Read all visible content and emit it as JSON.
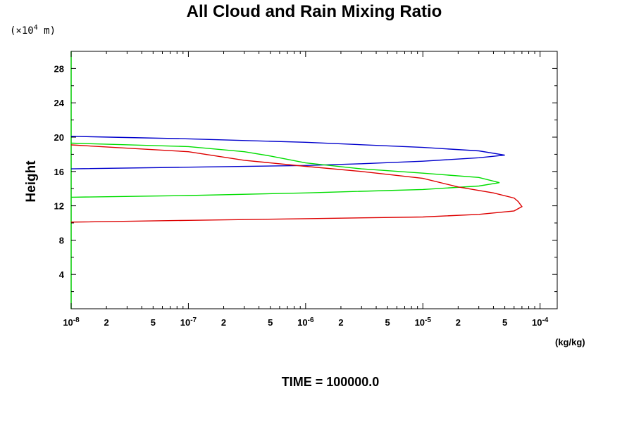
{
  "chart_data": {
    "type": "line",
    "title": "All Cloud and Rain Mixing Ratio",
    "ylabel": "Height",
    "y_unit": "(×10",
    "y_unit_exp": "4",
    "y_unit_tail": " m)",
    "xlabel_unit": "(kg/kg)",
    "x_scale": "log",
    "xlim": [
      1e-08,
      0.00014
    ],
    "ylim": [
      0,
      30
    ],
    "y_ticks": [
      "4",
      "8",
      "12",
      "16",
      "20",
      "24",
      "28"
    ],
    "x_decade_labels": [
      {
        "base": "10",
        "exp": "-8"
      },
      {
        "base": "10",
        "exp": "-7"
      },
      {
        "base": "10",
        "exp": "-6"
      },
      {
        "base": "10",
        "exp": "-5"
      },
      {
        "base": "10",
        "exp": "-4"
      }
    ],
    "x_minor_label_2": "2",
    "x_minor_label_5": "5",
    "grid": false,
    "series": [
      {
        "color": "#0000cc",
        "points": [
          [
            1e-08,
            20.1
          ],
          [
            1e-07,
            19.8
          ],
          [
            1e-06,
            19.4
          ],
          [
            1e-05,
            18.8
          ],
          [
            3e-05,
            18.4
          ],
          [
            5e-05,
            17.9
          ],
          [
            3e-05,
            17.6
          ],
          [
            1e-05,
            17.2
          ],
          [
            3e-06,
            16.9
          ],
          [
            1e-06,
            16.7
          ],
          [
            1e-07,
            16.5
          ],
          [
            1e-08,
            16.3
          ]
        ]
      },
      {
        "color": "#00dd00",
        "points": [
          [
            1e-08,
            19.3
          ],
          [
            1e-07,
            18.9
          ],
          [
            3e-07,
            18.3
          ],
          [
            5e-07,
            17.8
          ],
          [
            1e-06,
            17.0
          ],
          [
            3e-06,
            16.3
          ],
          [
            1e-05,
            15.8
          ],
          [
            3e-05,
            15.3
          ],
          [
            4.5e-05,
            14.7
          ],
          [
            3e-05,
            14.3
          ],
          [
            1e-05,
            13.9
          ],
          [
            1e-06,
            13.5
          ],
          [
            1e-07,
            13.2
          ],
          [
            1e-08,
            13.0
          ]
        ]
      },
      {
        "color": "#dd0000",
        "points": [
          [
            1e-08,
            19.1
          ],
          [
            1e-07,
            18.3
          ],
          [
            3e-07,
            17.3
          ],
          [
            1e-06,
            16.6
          ],
          [
            3e-06,
            16.0
          ],
          [
            1e-05,
            15.2
          ],
          [
            2e-05,
            14.2
          ],
          [
            4e-05,
            13.5
          ],
          [
            6e-05,
            12.9
          ],
          [
            6.5e-05,
            12.5
          ],
          [
            7e-05,
            11.9
          ],
          [
            6e-05,
            11.4
          ],
          [
            3e-05,
            11.0
          ],
          [
            1e-05,
            10.7
          ],
          [
            1e-06,
            10.5
          ],
          [
            1e-07,
            10.3
          ],
          [
            1e-08,
            10.1
          ]
        ]
      }
    ]
  },
  "footer": {
    "time_text": "TIME = 100000.0"
  }
}
